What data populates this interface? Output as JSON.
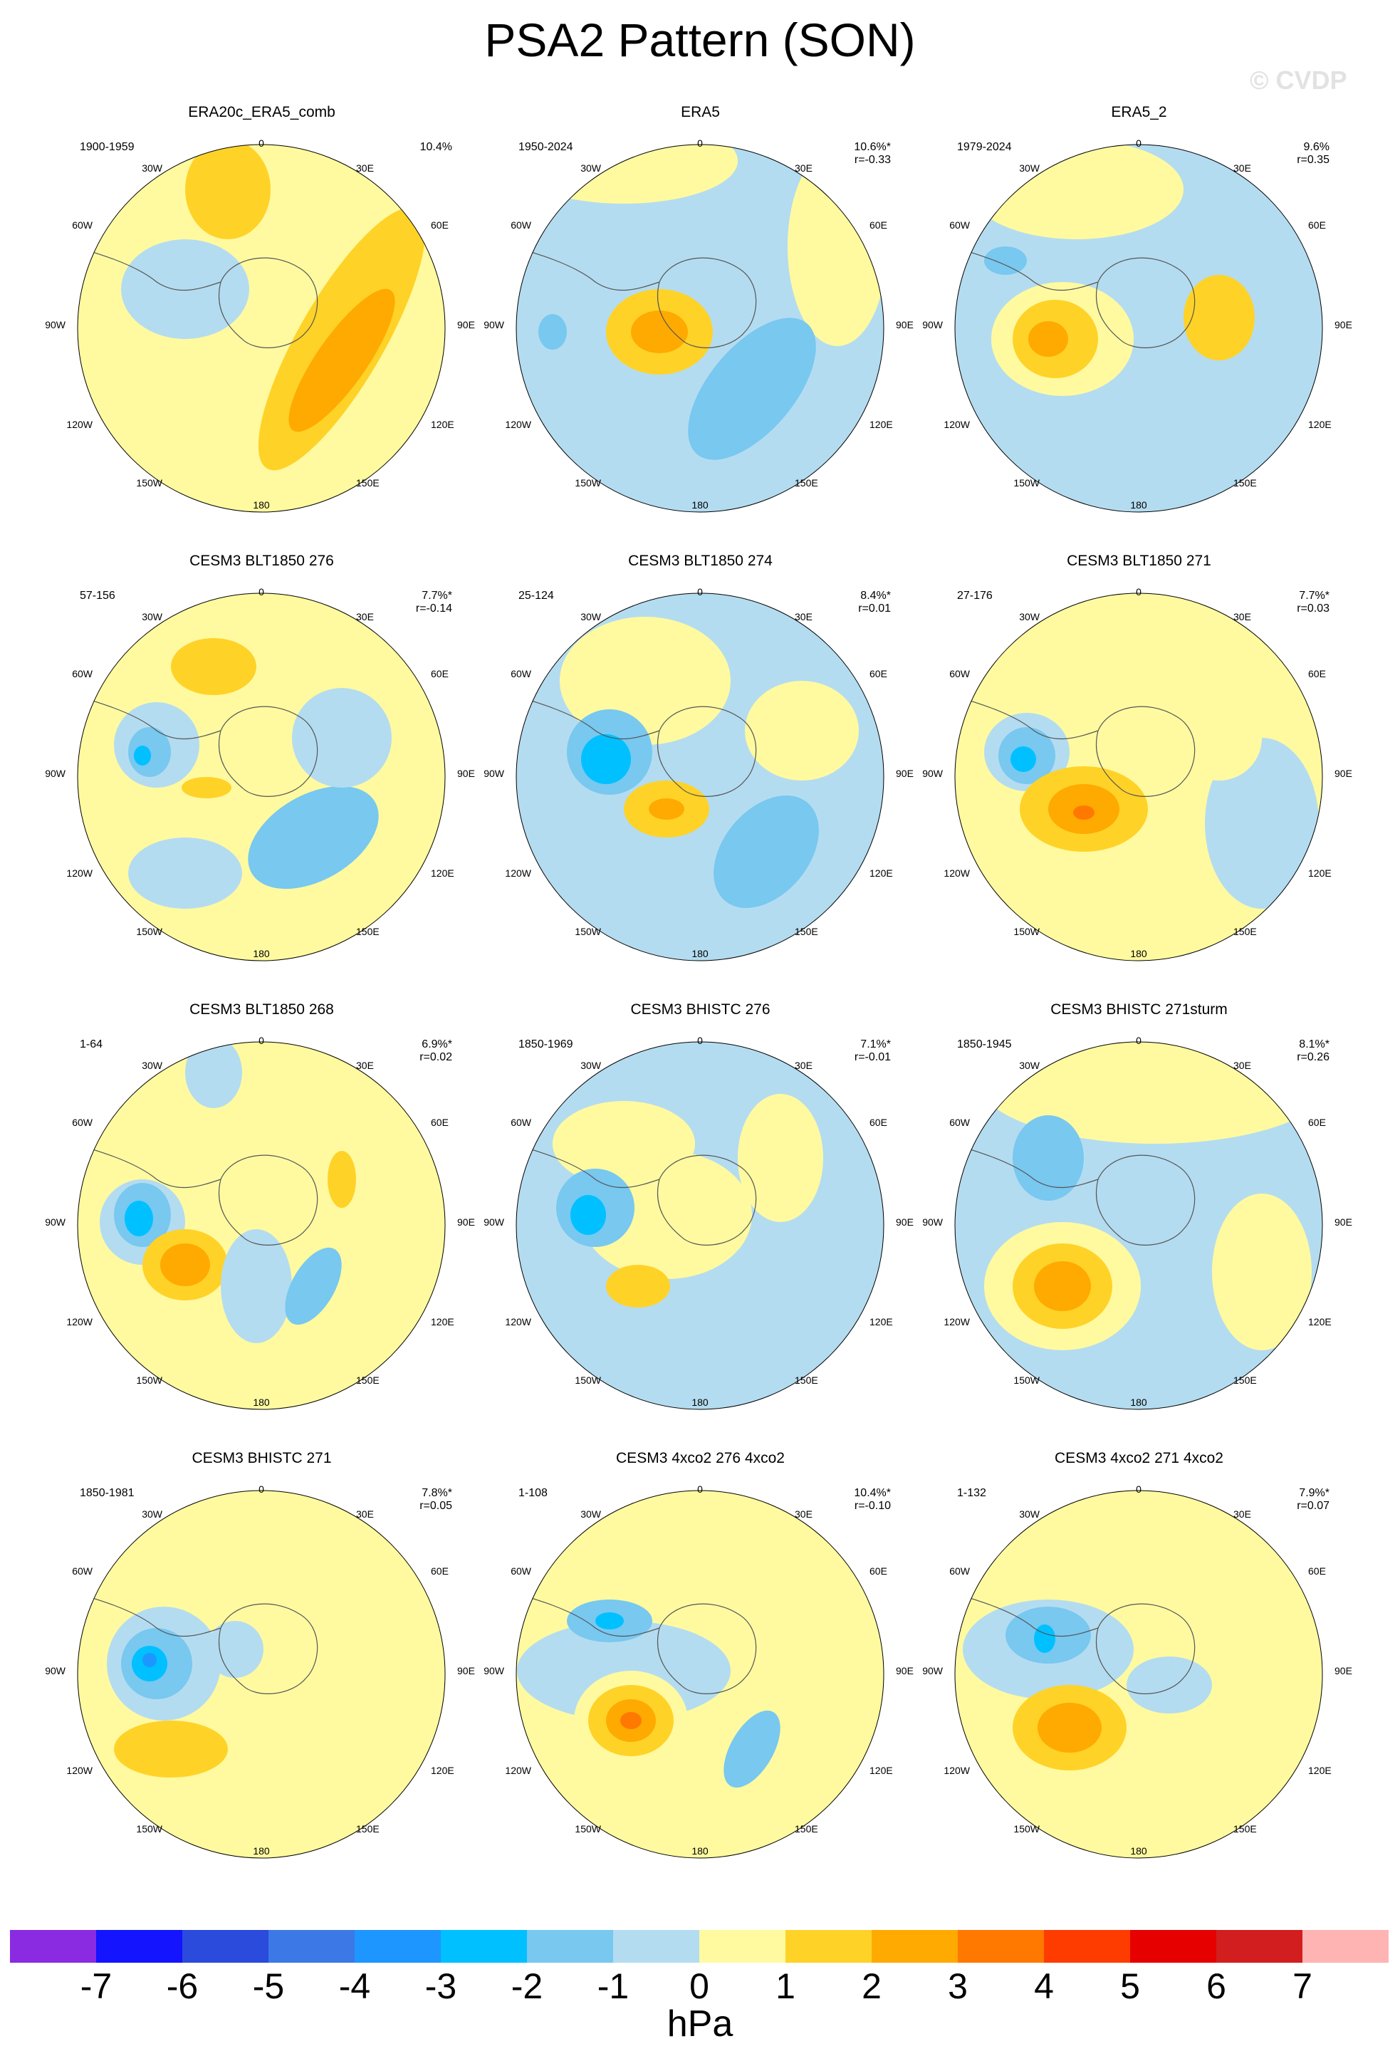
{
  "title": "PSA2 Pattern (SON)",
  "watermark": "© CVDP",
  "longitude_labels": [
    "0",
    "30E",
    "60E",
    "90E",
    "120E",
    "150E",
    "180",
    "150W",
    "120W",
    "90W",
    "60W",
    "30W"
  ],
  "panels": [
    {
      "title": "ERA20c_ERA5_comb",
      "period": "1900-1959",
      "pct": "10.4%",
      "corr": ""
    },
    {
      "title": "ERA5",
      "period": "1950-2024",
      "pct": "10.6%*",
      "corr": "r=-0.33"
    },
    {
      "title": "ERA5_2",
      "period": "1979-2024",
      "pct": "9.6%",
      "corr": "r=0.35"
    },
    {
      "title": "CESM3 BLT1850 276",
      "period": "57-156",
      "pct": "7.7%*",
      "corr": "r=-0.14"
    },
    {
      "title": "CESM3 BLT1850 274",
      "period": "25-124",
      "pct": "8.4%*",
      "corr": "r=0.01"
    },
    {
      "title": "CESM3 BLT1850 271",
      "period": "27-176",
      "pct": "7.7%*",
      "corr": "r=0.03"
    },
    {
      "title": "CESM3 BLT1850 268",
      "period": "1-64",
      "pct": "6.9%*",
      "corr": "r=0.02"
    },
    {
      "title": "CESM3 BHISTC 276",
      "period": "1850-1969",
      "pct": "7.1%*",
      "corr": "r=-0.01"
    },
    {
      "title": "CESM3 BHISTC 271sturm",
      "period": "1850-1945",
      "pct": "8.1%*",
      "corr": "r=0.26"
    },
    {
      "title": "CESM3 BHISTC 271",
      "period": "1850-1981",
      "pct": "7.8%*",
      "corr": "r=0.05"
    },
    {
      "title": "CESM3 4xco2 276 4xco2",
      "period": "1-108",
      "pct": "10.4%*",
      "corr": "r=-0.10"
    },
    {
      "title": "CESM3 4xco2 271 4xco2",
      "period": "1-132",
      "pct": "7.9%*",
      "corr": "r=0.07"
    }
  ],
  "colorbar": {
    "colors": [
      "#8a2be2",
      "#1414ff",
      "#2a4bdc",
      "#3c78e6",
      "#1e96ff",
      "#00c0ff",
      "#78c8f0",
      "#b4dcf0",
      "#fffaa0",
      "#ffd228",
      "#ffaa00",
      "#ff7800",
      "#ff3c00",
      "#e60000",
      "#d21e1e",
      "#ffb4b4"
    ],
    "ticks": [
      "-7",
      "-6",
      "-5",
      "-4",
      "-3",
      "-2",
      "-1",
      "0",
      "1",
      "2",
      "3",
      "4",
      "5",
      "6",
      "7"
    ],
    "units": "hPa"
  }
}
